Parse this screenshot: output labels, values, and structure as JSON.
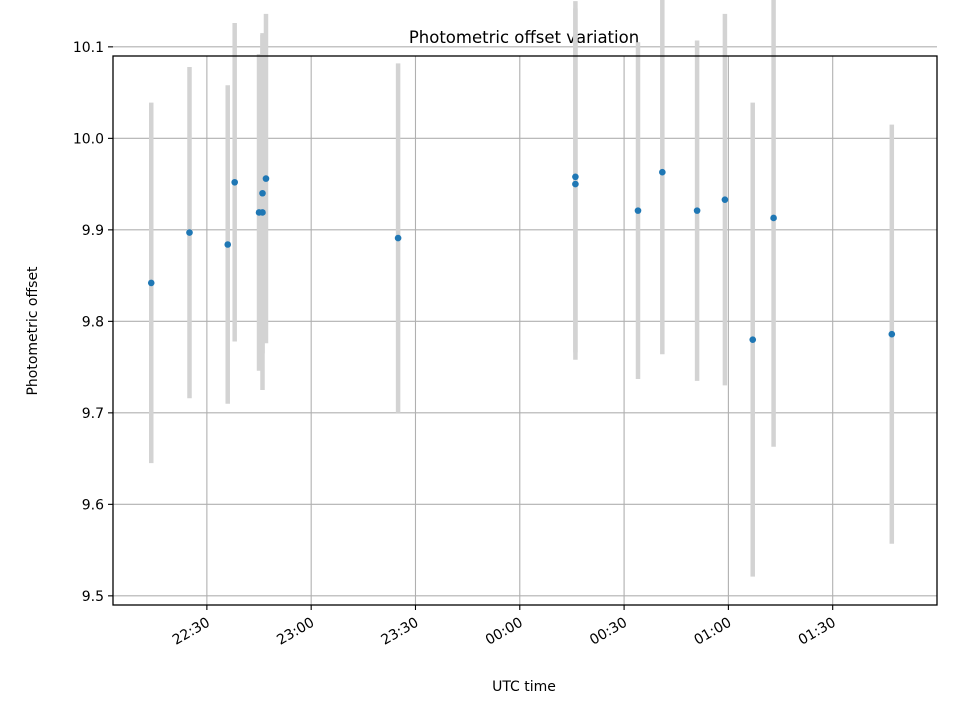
{
  "chart_data": {
    "type": "scatter",
    "title": "Photometric offset variation",
    "xlabel": "UTC time",
    "ylabel": "Photometric offset",
    "x_tick_labels": [
      "22:30",
      "23:00",
      "23:30",
      "00:00",
      "00:30",
      "01:00",
      "01:30"
    ],
    "y_tick_labels": [
      "9.5",
      "9.6",
      "9.7",
      "9.8",
      "9.9",
      "10.0",
      "10.1"
    ],
    "xlim": [
      "22:03",
      "02:00"
    ],
    "ylim": [
      9.49,
      10.09
    ],
    "grid": true,
    "legend": "none",
    "colors": {
      "points": "#1f77b4",
      "errorbars": "#d3d3d3",
      "grid": "#b0b0b0"
    },
    "series": [
      {
        "points": [
          {
            "x": "22:14",
            "y": 9.842,
            "yerr": 0.197
          },
          {
            "x": "22:25",
            "y": 9.897,
            "yerr": 0.181
          },
          {
            "x": "22:36",
            "y": 9.884,
            "yerr": 0.174
          },
          {
            "x": "22:38",
            "y": 9.952,
            "yerr": 0.174
          },
          {
            "x": "22:45",
            "y": 9.919,
            "yerr": 0.173
          },
          {
            "x": "22:46",
            "y": 9.919,
            "yerr": 0.194
          },
          {
            "x": "22:46",
            "y": 9.94,
            "yerr": 0.175
          },
          {
            "x": "22:47",
            "y": 9.956,
            "yerr": 0.18
          },
          {
            "x": "23:25",
            "y": 9.891,
            "yerr": 0.191
          },
          {
            "x": "00:16",
            "y": 9.958,
            "yerr": 0.192
          },
          {
            "x": "00:16",
            "y": 9.95,
            "yerr": 0.192
          },
          {
            "x": "00:34",
            "y": 9.921,
            "yerr": 0.184
          },
          {
            "x": "00:41",
            "y": 9.963,
            "yerr": 0.199
          },
          {
            "x": "00:51",
            "y": 9.921,
            "yerr": 0.186
          },
          {
            "x": "00:59",
            "y": 9.933,
            "yerr": 0.203
          },
          {
            "x": "01:07",
            "y": 9.78,
            "yerr": 0.259
          },
          {
            "x": "01:13",
            "y": 9.913,
            "yerr": 0.25
          },
          {
            "x": "01:47",
            "y": 9.786,
            "yerr": 0.229
          }
        ]
      }
    ]
  }
}
